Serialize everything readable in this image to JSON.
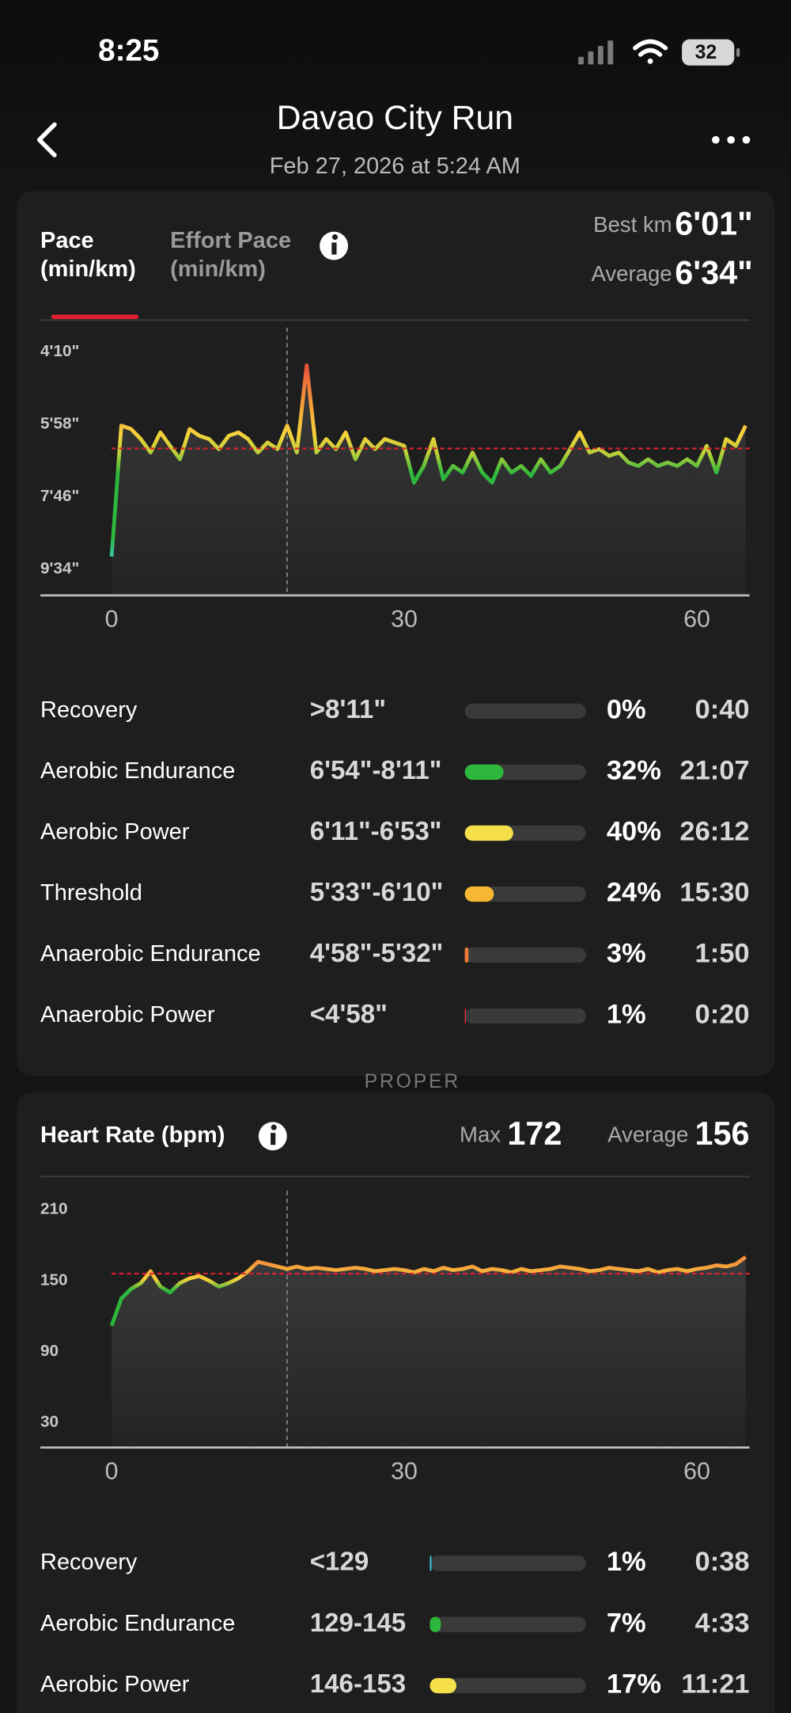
{
  "status_bar": {
    "time": "8:25",
    "battery": "32"
  },
  "header": {
    "title": "Davao City Run",
    "subtitle": "Feb 27, 2026 at 5:24 AM"
  },
  "map_labels": [
    "PROPER"
  ],
  "pace": {
    "tabs": [
      [
        "Pace",
        "(min/km)"
      ],
      [
        "Effort Pace",
        "(min/km)"
      ]
    ],
    "best_label": "Best km",
    "best": "6'01\"",
    "average_label": "Average",
    "average": "6'34\"",
    "chart": {
      "type": "line",
      "reversed": true,
      "ylim": [
        214,
        613
      ],
      "yticks": [
        {
          "value": 250,
          "label": "4'10\""
        },
        {
          "value": 358,
          "label": "5'58\""
        },
        {
          "value": 466,
          "label": "7'46\""
        },
        {
          "value": 574,
          "label": "9'34\""
        }
      ],
      "xlim": [
        -7.3,
        65.4
      ],
      "xticks": [
        0,
        30,
        60
      ],
      "average": 394,
      "cursor_x": 18,
      "x": [
        0,
        1,
        2,
        3,
        4,
        5,
        6,
        7,
        8,
        9,
        10,
        11,
        12,
        13,
        14,
        15,
        16,
        17,
        18,
        19,
        20,
        21,
        22,
        23,
        24,
        25,
        26,
        27,
        28,
        29,
        30,
        31,
        32,
        33,
        34,
        35,
        36,
        37,
        38,
        39,
        40,
        41,
        42,
        43,
        44,
        45,
        46,
        47,
        48,
        49,
        50,
        51,
        52,
        53,
        54,
        55,
        56,
        57,
        58,
        59,
        60,
        61,
        62,
        63,
        64,
        65
      ],
      "values": [
        555,
        360,
        365,
        380,
        400,
        370,
        390,
        410,
        365,
        375,
        380,
        395,
        375,
        370,
        380,
        400,
        385,
        395,
        360,
        400,
        270,
        400,
        380,
        395,
        370,
        410,
        380,
        395,
        380,
        385,
        390,
        445,
        420,
        380,
        440,
        420,
        430,
        400,
        430,
        445,
        410,
        430,
        420,
        435,
        410,
        430,
        420,
        395,
        370,
        400,
        395,
        405,
        400,
        415,
        420,
        410,
        420,
        415,
        420,
        410,
        420,
        390,
        430,
        380,
        390,
        360
      ]
    },
    "zones": [
      {
        "name": "Recovery",
        "range": ">8'11\"",
        "percent": 0,
        "percent_label": "0%",
        "time": "0:40",
        "color": "#3ec8e0"
      },
      {
        "name": "Aerobic Endurance",
        "range": "6'54\"-8'11\"",
        "percent": 32,
        "percent_label": "32%",
        "time": "21:07",
        "color": "#2db83d"
      },
      {
        "name": "Aerobic Power",
        "range": "6'11\"-6'53\"",
        "percent": 40,
        "percent_label": "40%",
        "time": "26:12",
        "color": "#f5e04a"
      },
      {
        "name": "Threshold",
        "range": "5'33\"-6'10\"",
        "percent": 24,
        "percent_label": "24%",
        "time": "15:30",
        "color": "#f7b733"
      },
      {
        "name": "Anaerobic Endurance",
        "range": "4'58\"-5'32\"",
        "percent": 3,
        "percent_label": "3%",
        "time": "1:50",
        "color": "#f07a3a"
      },
      {
        "name": "Anaerobic Power",
        "range": "<4'58\"",
        "percent": 1,
        "percent_label": "1%",
        "time": "0:20",
        "color": "#e0303a"
      }
    ]
  },
  "heart_rate": {
    "title": "Heart Rate (bpm)",
    "max_label": "Max",
    "max": "172",
    "average_label": "Average",
    "average": "156",
    "chart": {
      "type": "line",
      "reversed": false,
      "ylim": [
        9,
        226
      ],
      "yticks": [
        210,
        150,
        90,
        30
      ],
      "xlim": [
        -7.3,
        65.4
      ],
      "xticks": [
        0,
        30,
        60
      ],
      "average": 156,
      "cursor_x": 18,
      "x": [
        0,
        1,
        2,
        3,
        4,
        5,
        6,
        7,
        8,
        9,
        10,
        11,
        12,
        13,
        14,
        15,
        16,
        17,
        18,
        19,
        20,
        21,
        22,
        23,
        24,
        25,
        26,
        27,
        28,
        29,
        30,
        31,
        32,
        33,
        34,
        35,
        36,
        37,
        38,
        39,
        40,
        41,
        42,
        43,
        44,
        45,
        46,
        47,
        48,
        49,
        50,
        51,
        52,
        53,
        54,
        55,
        56,
        57,
        58,
        59,
        60,
        61,
        62,
        63,
        64,
        65
      ],
      "values": [
        112,
        135,
        143,
        148,
        158,
        145,
        140,
        148,
        152,
        154,
        150,
        145,
        148,
        152,
        158,
        166,
        164,
        162,
        160,
        162,
        160,
        161,
        160,
        159,
        160,
        161,
        160,
        158,
        159,
        160,
        159,
        157,
        160,
        158,
        161,
        159,
        160,
        162,
        158,
        160,
        159,
        157,
        160,
        158,
        159,
        160,
        162,
        161,
        160,
        158,
        159,
        161,
        160,
        159,
        158,
        160,
        157,
        159,
        160,
        158,
        160,
        161,
        163,
        162,
        164,
        170
      ]
    },
    "zones": [
      {
        "name": "Recovery",
        "range": "<129",
        "percent": 1,
        "percent_label": "1%",
        "time": "0:38",
        "color": "#3ec8e0"
      },
      {
        "name": "Aerobic Endurance",
        "range": "129-145",
        "percent": 7,
        "percent_label": "7%",
        "time": "4:33",
        "color": "#2db83d"
      },
      {
        "name": "Aerobic Power",
        "range": "146-153",
        "percent": 17,
        "percent_label": "17%",
        "time": "11:21",
        "color": "#f5e04a"
      }
    ]
  }
}
